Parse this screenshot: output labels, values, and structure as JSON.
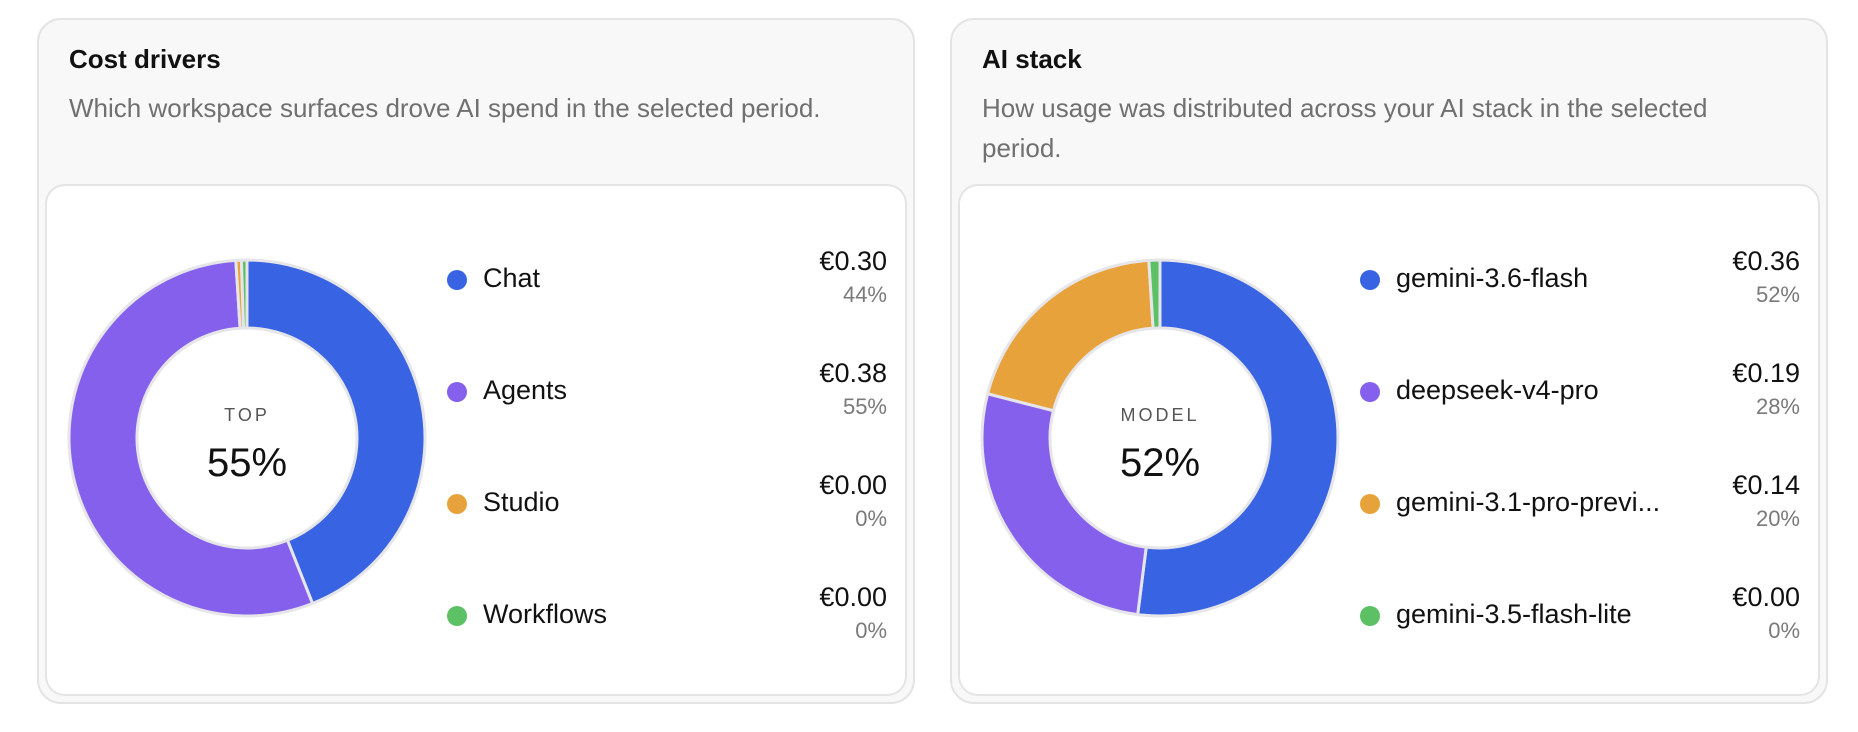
{
  "chart_data": [
    {
      "type": "pie",
      "title": "Cost drivers",
      "subtitle": "Which workspace surfaces drove AI spend in the selected period.",
      "center_label": "TOP",
      "center_value": "55%",
      "categories": [
        "Chat",
        "Agents",
        "Studio",
        "Workflows"
      ],
      "values": [
        0.3,
        0.38,
        0.0,
        0.0
      ],
      "value_labels": [
        "€0.30",
        "€0.38",
        "€0.00",
        "€0.00"
      ],
      "percent_labels": [
        "44%",
        "55%",
        "0%",
        "0%"
      ],
      "arc_fractions": [
        0.44,
        0.55,
        0.005,
        0.005
      ],
      "colors": [
        "#3864e4",
        "#8560ec",
        "#e8a23c",
        "#5cc064"
      ],
      "legend": "right"
    },
    {
      "type": "pie",
      "title": "AI stack",
      "subtitle": "How usage was distributed across your AI stack in the selected period.",
      "center_label": "MODEL",
      "center_value": "52%",
      "categories": [
        "gemini-3.6-flash",
        "deepseek-v4-pro",
        "gemini-3.1-pro-previ...",
        "gemini-3.5-flash-lite"
      ],
      "values": [
        0.36,
        0.19,
        0.14,
        0.0
      ],
      "value_labels": [
        "€0.36",
        "€0.19",
        "€0.14",
        "€0.00"
      ],
      "percent_labels": [
        "52%",
        "28%",
        "20%",
        "0%"
      ],
      "arc_fractions": [
        0.52,
        0.27,
        0.2,
        0.01
      ],
      "colors": [
        "#3864e4",
        "#8560ec",
        "#e8a23c",
        "#5cc064"
      ],
      "legend": "right"
    }
  ]
}
